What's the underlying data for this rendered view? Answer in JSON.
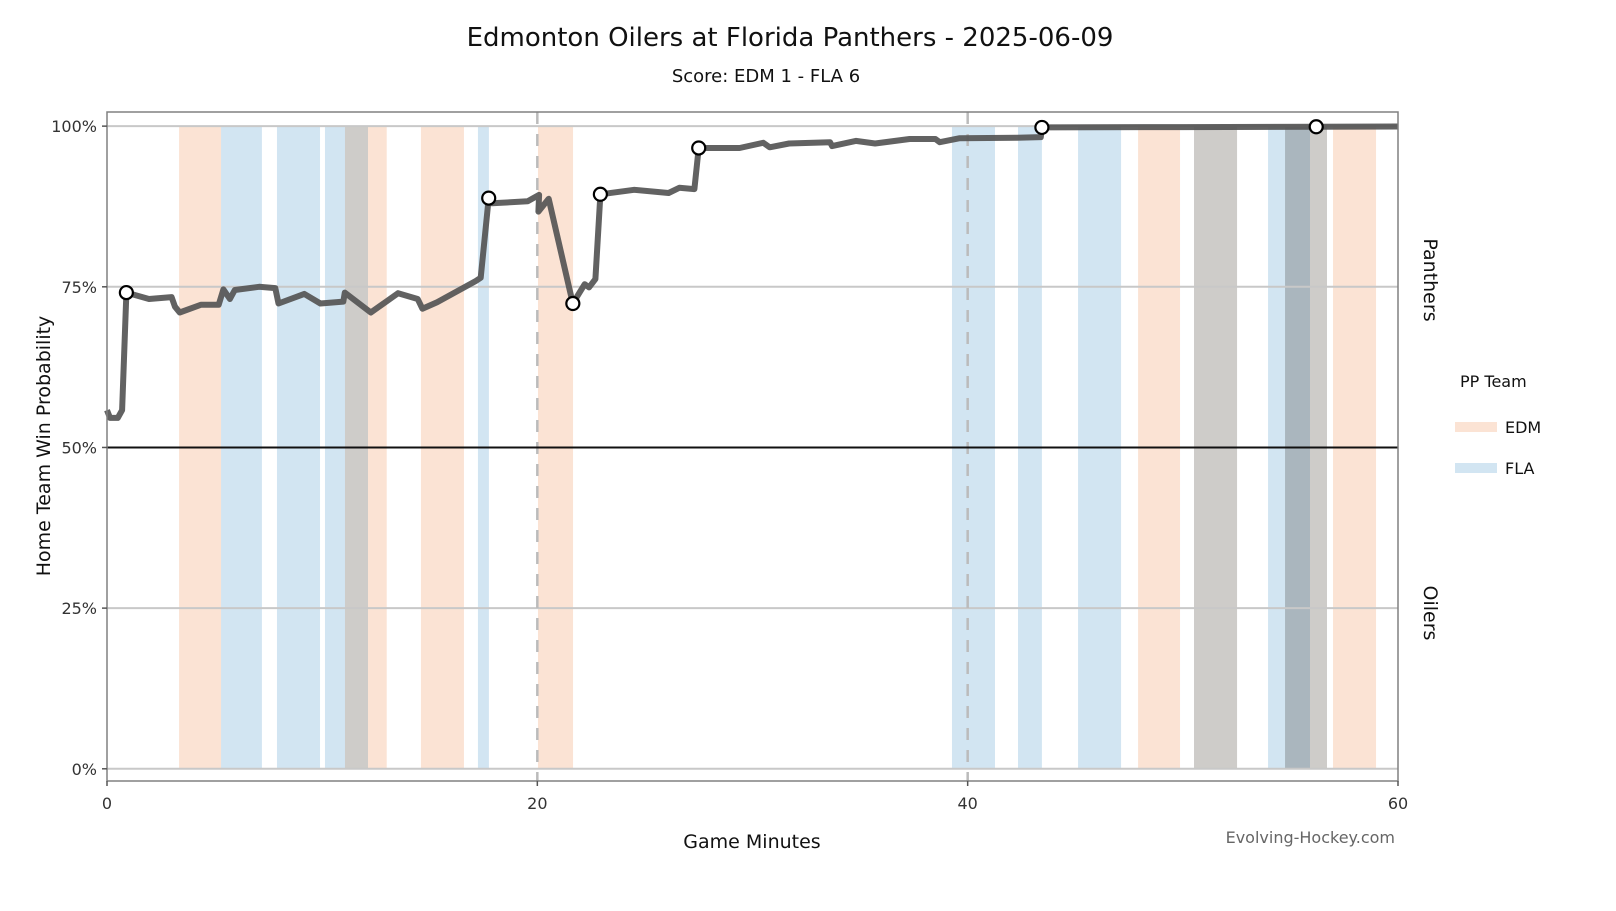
{
  "chart_data": {
    "type": "line",
    "title": "Edmonton Oilers at Florida Panthers - 2025-06-09",
    "subtitle": "Score: EDM 1 - FLA 6",
    "xlabel": "Game Minutes",
    "ylabel": "Home Team Win Probability",
    "xlim": [
      0,
      60
    ],
    "ylim": [
      -1.9,
      102.2
    ],
    "x_ticks": [
      0,
      20,
      40,
      60
    ],
    "x_tick_labels": [
      "0",
      "20",
      "40",
      "60"
    ],
    "y_ticks": [
      0,
      25,
      50,
      75,
      100
    ],
    "y_tick_labels": [
      "0%",
      "25%",
      "50%",
      "75%",
      "100%"
    ],
    "period_lines": [
      20,
      40
    ],
    "reference_line": 50,
    "side_labels": {
      "top": "Panthers",
      "bottom": "Oilers"
    },
    "legend": {
      "title": "PP Team",
      "placement": "right",
      "entries": [
        {
          "label": "EDM",
          "color": "#fbe3d4"
        },
        {
          "label": "FLA",
          "color": "#d2e5f2"
        }
      ]
    },
    "watermark": "Evolving-Hockey.com",
    "series": [
      {
        "name": "Home Team Win Probability",
        "color": "#555555",
        "points": [
          [
            0,
            55.8
          ],
          [
            0.14,
            54.6
          ],
          [
            0.5,
            54.6
          ],
          [
            0.7,
            55.8
          ],
          [
            0.9,
            74.1
          ],
          [
            1.95,
            73.1
          ],
          [
            3.0,
            73.4
          ],
          [
            3.16,
            71.9
          ],
          [
            3.38,
            71.0
          ],
          [
            4.36,
            72.2
          ],
          [
            5.19,
            72.2
          ],
          [
            5.41,
            74.6
          ],
          [
            5.71,
            73.1
          ],
          [
            5.94,
            74.5
          ],
          [
            7.07,
            75.0
          ],
          [
            7.82,
            74.8
          ],
          [
            7.97,
            72.4
          ],
          [
            9.17,
            73.9
          ],
          [
            9.92,
            72.4
          ],
          [
            10.98,
            72.7
          ],
          [
            11.05,
            74.1
          ],
          [
            12.26,
            71.0
          ],
          [
            13.53,
            74.0
          ],
          [
            14.44,
            73.1
          ],
          [
            14.66,
            71.6
          ],
          [
            15.34,
            72.6
          ],
          [
            17.14,
            75.9
          ],
          [
            17.37,
            76.4
          ],
          [
            17.74,
            88.8
          ],
          [
            17.89,
            88.0
          ],
          [
            19.55,
            88.3
          ],
          [
            20.08,
            89.3
          ],
          [
            20.05,
            86.7
          ],
          [
            20.53,
            88.7
          ],
          [
            21.65,
            72.4
          ],
          [
            22.2,
            75.4
          ],
          [
            22.4,
            74.9
          ],
          [
            22.7,
            76.2
          ],
          [
            22.93,
            89.4
          ],
          [
            24.5,
            90.1
          ],
          [
            26.1,
            89.6
          ],
          [
            26.6,
            90.4
          ],
          [
            27.3,
            90.2
          ],
          [
            27.5,
            96.6
          ],
          [
            29.4,
            96.6
          ],
          [
            30.5,
            97.4
          ],
          [
            30.8,
            96.7
          ],
          [
            31.7,
            97.3
          ],
          [
            33.6,
            97.5
          ],
          [
            33.7,
            96.9
          ],
          [
            34.8,
            97.7
          ],
          [
            35.7,
            97.3
          ],
          [
            37.3,
            98.0
          ],
          [
            38.5,
            98.0
          ],
          [
            38.7,
            97.5
          ],
          [
            39.6,
            98.1
          ],
          [
            42.3,
            98.2
          ],
          [
            43.4,
            98.3
          ],
          [
            43.45,
            99.8
          ],
          [
            50,
            99.85
          ],
          [
            56.2,
            99.9
          ],
          [
            60,
            99.95
          ]
        ]
      }
    ],
    "goals": [
      {
        "team": "FLA",
        "minute": 0.9,
        "prob": 74.1
      },
      {
        "team": "FLA",
        "minute": 17.74,
        "prob": 88.8
      },
      {
        "team": "EDM",
        "minute": 21.65,
        "prob": 72.4
      },
      {
        "team": "FLA",
        "minute": 22.93,
        "prob": 89.4
      },
      {
        "team": "FLA",
        "minute": 27.5,
        "prob": 96.6
      },
      {
        "team": "FLA",
        "minute": 43.45,
        "prob": 99.8
      },
      {
        "team": "FLA",
        "minute": 56.2,
        "prob": 99.9
      }
    ],
    "power_plays": [
      {
        "team": "EDM",
        "start": 3.35,
        "end": 5.3
      },
      {
        "team": "FLA",
        "start": 5.3,
        "end": 7.2
      },
      {
        "team": "FLA",
        "start": 7.9,
        "end": 9.9
      },
      {
        "team": "FLA",
        "start": 10.13,
        "end": 12.13
      },
      {
        "team": "EDM",
        "start": 11.06,
        "end": 13.0
      },
      {
        "team": "EDM",
        "start": 14.59,
        "end": 16.59
      },
      {
        "team": "FLA",
        "start": 17.24,
        "end": 17.75
      },
      {
        "team": "EDM",
        "start": 20.03,
        "end": 21.66
      },
      {
        "team": "FLA",
        "start": 39.27,
        "end": 41.27
      },
      {
        "team": "FLA",
        "start": 42.34,
        "end": 43.45
      },
      {
        "team": "FLA",
        "start": 45.13,
        "end": 47.13
      },
      {
        "team": "EDM",
        "start": 47.92,
        "end": 49.87
      },
      {
        "team": "EDM",
        "start": 50.52,
        "end": 52.52
      },
      {
        "team": "FLA",
        "start": 50.52,
        "end": 52.52
      },
      {
        "team": "FLA",
        "start": 53.96,
        "end": 55.91
      },
      {
        "team": "FLA",
        "start": 54.75,
        "end": 56.7
      },
      {
        "team": "EDM",
        "start": 54.75,
        "end": 56.7
      },
      {
        "team": "EDM",
        "start": 56.98,
        "end": 58.98
      }
    ]
  }
}
